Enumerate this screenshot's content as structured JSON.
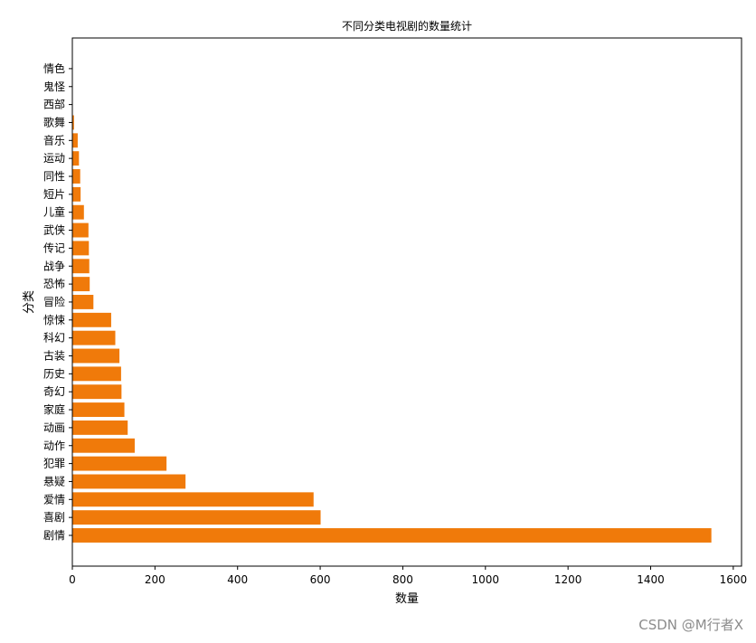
{
  "watermark": "CSDN @M行者X",
  "colors": {
    "bar": "#f07a0a",
    "axis": "#000000"
  },
  "chart_data": {
    "type": "bar",
    "orientation": "horizontal",
    "title": "不同分类电视剧的数量统计",
    "xlabel": "数量",
    "ylabel": "分类",
    "xlim": [
      0,
      1620
    ],
    "xticks": [
      0,
      200,
      400,
      600,
      800,
      1000,
      1200,
      1400,
      1600
    ],
    "categories": [
      "剧情",
      "喜剧",
      "爱情",
      "悬疑",
      "犯罪",
      "动作",
      "动画",
      "家庭",
      "奇幻",
      "历史",
      "古装",
      "科幻",
      "惊悚",
      "冒险",
      "恐怖",
      "战争",
      "传记",
      "武侠",
      "儿童",
      "短片",
      "同性",
      "运动",
      "音乐",
      "歌舞",
      "西部",
      "鬼怪",
      "情色"
    ],
    "values": [
      1547,
      601,
      584,
      274,
      228,
      151,
      134,
      126,
      119,
      118,
      114,
      104,
      94,
      51,
      42,
      41,
      40,
      39,
      28,
      20,
      19,
      16,
      13,
      4,
      1,
      1,
      1
    ],
    "grid": false
  }
}
